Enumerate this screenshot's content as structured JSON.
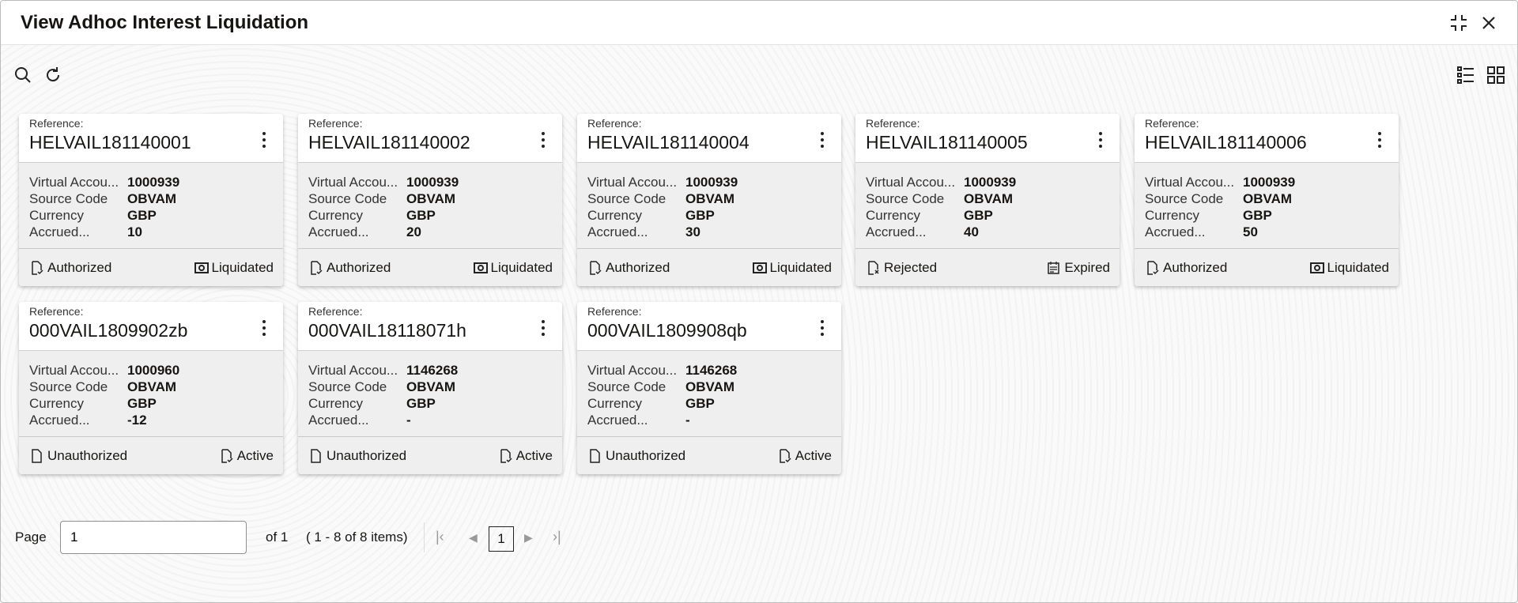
{
  "header": {
    "title": "View Adhoc Interest Liquidation",
    "icons": [
      "minimize-icon",
      "close-icon"
    ]
  },
  "toolbar": {
    "icons": [
      "search-icon",
      "refresh-icon",
      "list-view-icon",
      "grid-view-icon"
    ]
  },
  "card_labels": {
    "reference": "Reference:",
    "virtual_account": "Virtual Accou...",
    "source_code": "Source Code",
    "currency": "Currency",
    "accrued": "Accrued..."
  },
  "cards": [
    {
      "reference": "HELVAIL181140001",
      "virtual_account": "1000939",
      "source_code": "OBVAM",
      "currency": "GBP",
      "accrued": "10",
      "auth_status": "Authorized",
      "auth_icon": "document-check-icon",
      "record_status": "Liquidated",
      "record_icon": "cash-icon"
    },
    {
      "reference": "HELVAIL181140002",
      "virtual_account": "1000939",
      "source_code": "OBVAM",
      "currency": "GBP",
      "accrued": "20",
      "auth_status": "Authorized",
      "auth_icon": "document-check-icon",
      "record_status": "Liquidated",
      "record_icon": "cash-icon"
    },
    {
      "reference": "HELVAIL181140004",
      "virtual_account": "1000939",
      "source_code": "OBVAM",
      "currency": "GBP",
      "accrued": "30",
      "auth_status": "Authorized",
      "auth_icon": "document-check-icon",
      "record_status": "Liquidated",
      "record_icon": "cash-icon"
    },
    {
      "reference": "HELVAIL181140005",
      "virtual_account": "1000939",
      "source_code": "OBVAM",
      "currency": "GBP",
      "accrued": "40",
      "auth_status": "Rejected",
      "auth_icon": "document-x-icon",
      "record_status": "Expired",
      "record_icon": "calendar-icon"
    },
    {
      "reference": "HELVAIL181140006",
      "virtual_account": "1000939",
      "source_code": "OBVAM",
      "currency": "GBP",
      "accrued": "50",
      "auth_status": "Authorized",
      "auth_icon": "document-check-icon",
      "record_status": "Liquidated",
      "record_icon": "cash-icon"
    },
    {
      "reference": "000VAIL1809902zb",
      "virtual_account": "1000960",
      "source_code": "OBVAM",
      "currency": "GBP",
      "accrued": "-12",
      "auth_status": "Unauthorized",
      "auth_icon": "document-icon",
      "record_status": "Active",
      "record_icon": "document-check-icon"
    },
    {
      "reference": "000VAIL18118071h",
      "virtual_account": "1146268",
      "source_code": "OBVAM",
      "currency": "GBP",
      "accrued": "-",
      "auth_status": "Unauthorized",
      "auth_icon": "document-icon",
      "record_status": "Active",
      "record_icon": "document-check-icon"
    },
    {
      "reference": "000VAIL1809908qb",
      "virtual_account": "1146268",
      "source_code": "OBVAM",
      "currency": "GBP",
      "accrued": "-",
      "auth_status": "Unauthorized",
      "auth_icon": "document-icon",
      "record_status": "Active",
      "record_icon": "document-check-icon"
    }
  ],
  "pagination": {
    "page_label": "Page",
    "page_value": "1",
    "of_label": "of 1",
    "items_label": "( 1 - 8 of 8 items)",
    "current_page": "1"
  }
}
